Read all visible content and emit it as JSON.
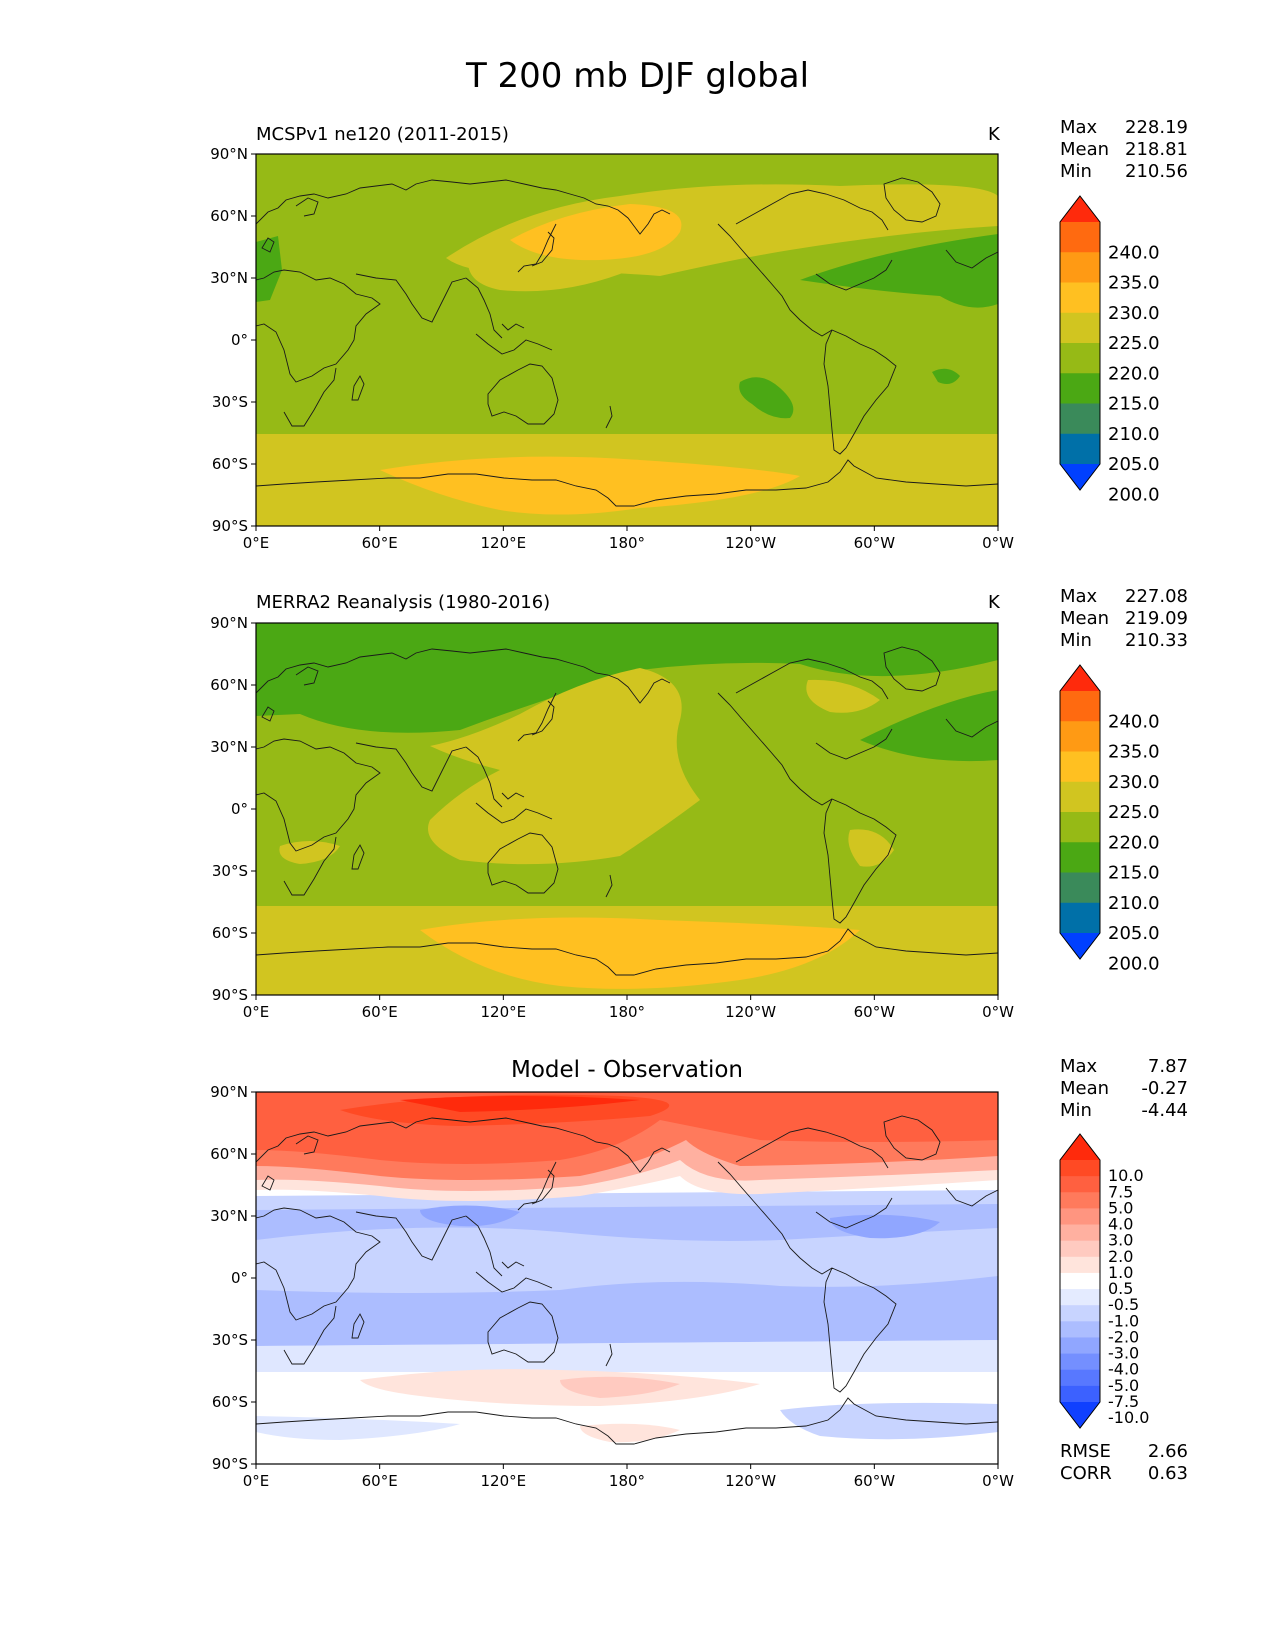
{
  "figure": {
    "title": "T 200 mb DJF global"
  },
  "panels": [
    {
      "title": "MCSPv1 ne120 (2011-2015)",
      "units": "K",
      "stats": [
        {
          "label": "Max",
          "value": "228.19"
        },
        {
          "label": "Mean",
          "value": "218.81"
        },
        {
          "label": "Min",
          "value": "210.56"
        }
      ],
      "colorbar": {
        "labels": [
          "240.0",
          "235.0",
          "230.0",
          "225.0",
          "220.0",
          "215.0",
          "210.0",
          "205.0",
          "200.0"
        ],
        "colors": [
          "#ff2a0c",
          "#ff6a10",
          "#ff9a14",
          "#ffc021",
          "#d1c520",
          "#96ba16",
          "#4ba814",
          "#3a8a5a",
          "#0070a8",
          "#0040ff"
        ]
      }
    },
    {
      "title": "MERRA2 Reanalysis (1980-2016)",
      "units": "K",
      "stats": [
        {
          "label": "Max",
          "value": "227.08"
        },
        {
          "label": "Mean",
          "value": "219.09"
        },
        {
          "label": "Min",
          "value": "210.33"
        }
      ],
      "colorbar": {
        "labels": [
          "240.0",
          "235.0",
          "230.0",
          "225.0",
          "220.0",
          "215.0",
          "210.0",
          "205.0",
          "200.0"
        ],
        "colors": [
          "#ff2a0c",
          "#ff6a10",
          "#ff9a14",
          "#ffc021",
          "#d1c520",
          "#96ba16",
          "#4ba814",
          "#3a8a5a",
          "#0070a8",
          "#0040ff"
        ]
      }
    },
    {
      "title": "Model - Observation",
      "units": "",
      "stats": [
        {
          "label": "Max",
          "value": "7.87"
        },
        {
          "label": "Mean",
          "value": "-0.27"
        },
        {
          "label": "Min",
          "value": "-4.44"
        }
      ],
      "extra_stats": [
        {
          "label": "RMSE",
          "value": "2.66"
        },
        {
          "label": "CORR",
          "value": "0.63"
        }
      ],
      "colorbar": {
        "labels": [
          "10.0",
          "7.5",
          "5.0",
          "4.0",
          "3.0",
          "2.0",
          "1.0",
          "0.5",
          "-0.5",
          "-1.0",
          "-2.0",
          "-3.0",
          "-4.0",
          "-5.0",
          "-7.5",
          "-10.0"
        ],
        "colors": [
          "#ff2a0c",
          "#ff4a24",
          "#ff6040",
          "#ff7a5c",
          "#ff9580",
          "#ffb0a0",
          "#ffcac0",
          "#ffe4dc",
          "#ffffff",
          "#e4ebff",
          "#c8d4ff",
          "#acbdff",
          "#90a6ff",
          "#748fff",
          "#5878ff",
          "#3c61ff",
          "#1040ff"
        ]
      }
    }
  ],
  "axes": {
    "lat_ticks": [
      "90°N",
      "60°N",
      "30°N",
      "0°",
      "30°S",
      "60°S",
      "90°S"
    ],
    "lon_ticks": [
      "0°E",
      "60°E",
      "120°E",
      "180°",
      "120°W",
      "60°W",
      "0°W"
    ]
  }
}
